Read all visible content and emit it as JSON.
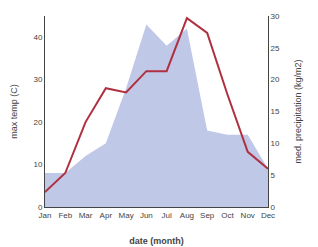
{
  "chart_data": {
    "type": "line",
    "xlabel": "date (month)",
    "ylabel": "max temp (C)",
    "y2label": "med. precipitation (kg/m2)",
    "categories": [
      "Jan",
      "Feb",
      "Mar",
      "Apr",
      "May",
      "Jun",
      "Jul",
      "Aug",
      "Sep",
      "Oct",
      "Nov",
      "Dec"
    ],
    "series": [
      {
        "type": "area",
        "color": "#c0c8e8",
        "values": [
          8.0,
          8.0,
          12.0,
          15.0,
          28.0,
          43.0,
          38.0,
          42.0,
          18.0,
          17.0,
          17.0,
          9.0
        ]
      },
      {
        "type": "line",
        "color": "#b03040",
        "values": [
          3.5,
          8.0,
          20.0,
          28.0,
          27.0,
          32.0,
          32.0,
          44.5,
          41.0,
          26.5,
          13.0,
          9.0
        ]
      }
    ],
    "ylim": [
      0,
      45
    ],
    "yticks": [
      0,
      10,
      20,
      30,
      40
    ],
    "y2lim": [
      0,
      30
    ],
    "y2ticks": [
      0,
      5,
      10,
      15,
      20,
      25,
      30
    ],
    "grid": false
  }
}
